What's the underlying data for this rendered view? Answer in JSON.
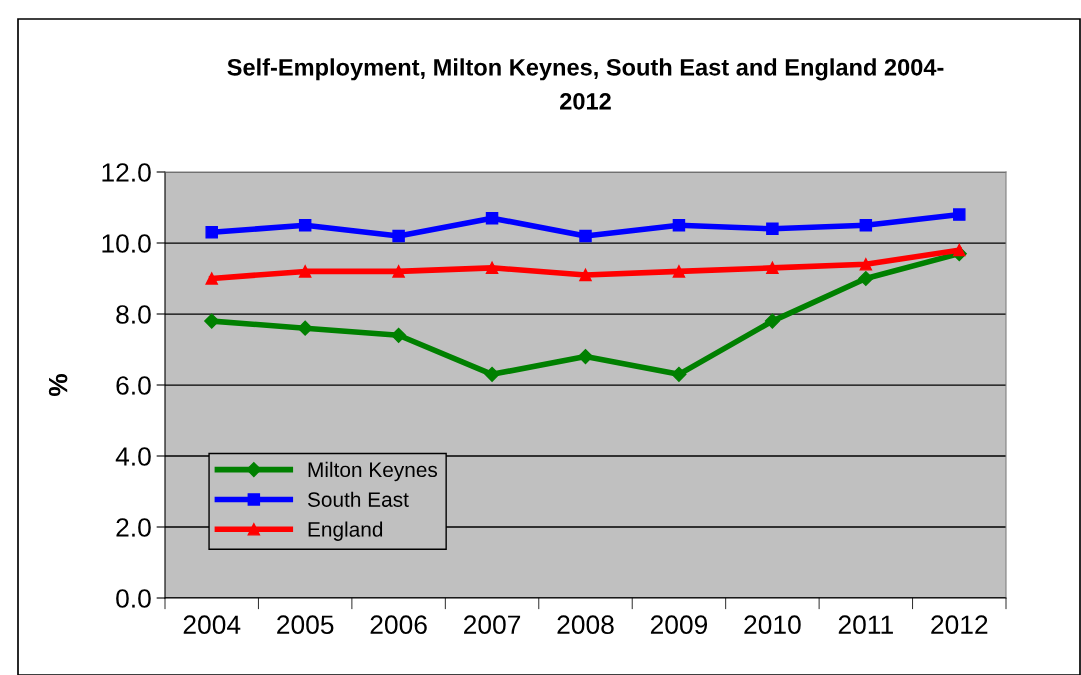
{
  "chart_data": {
    "type": "line",
    "title": "Self-Employment, Milton Keynes, South East and England 2004-\n2012",
    "ylabel": "%",
    "categories": [
      "2004",
      "2005",
      "2006",
      "2007",
      "2008",
      "2009",
      "2010",
      "2011",
      "2012"
    ],
    "series": [
      {
        "name": "Milton Keynes",
        "color": "#008000",
        "marker": "diamond",
        "values": [
          7.8,
          7.6,
          7.4,
          6.3,
          6.8,
          6.3,
          7.8,
          9.0,
          9.7
        ]
      },
      {
        "name": "South East",
        "color": "#0000ff",
        "marker": "square",
        "values": [
          10.3,
          10.5,
          10.2,
          10.7,
          10.2,
          10.5,
          10.4,
          10.5,
          10.8
        ]
      },
      {
        "name": "England",
        "color": "#ff0000",
        "marker": "triangle",
        "values": [
          9.0,
          9.2,
          9.2,
          9.3,
          9.1,
          9.2,
          9.3,
          9.4,
          9.8
        ]
      }
    ],
    "ylim": [
      0,
      12
    ],
    "yticks": [
      {
        "value": 0,
        "label": "0.0"
      },
      {
        "value": 2,
        "label": "2.0"
      },
      {
        "value": 4,
        "label": "4.0"
      },
      {
        "value": 6,
        "label": "6.0"
      },
      {
        "value": 8,
        "label": "8.0"
      },
      {
        "value": 10,
        "label": "10.0"
      },
      {
        "value": 12,
        "label": "12.0"
      }
    ],
    "grid": "y",
    "legend": "bottom left",
    "line_style": "solid"
  }
}
